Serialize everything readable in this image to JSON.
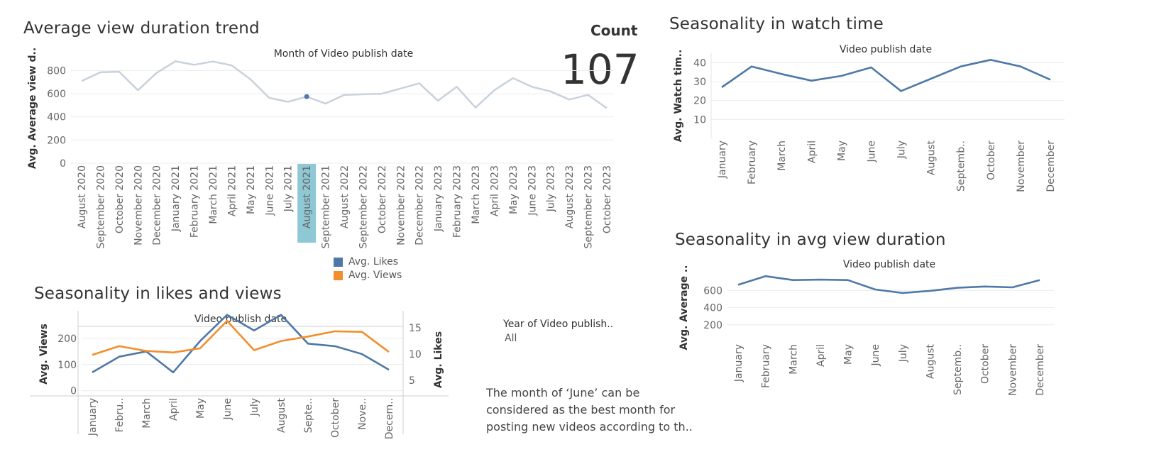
{
  "titles": {
    "trend": "Average view duration trend",
    "watch": "Seasonality in watch time",
    "likes_views": "Seasonality in  likes and views",
    "avgdur": "Seasonality in avg view duration"
  },
  "kpi": {
    "label": "Count",
    "value": "107"
  },
  "legend": [
    {
      "label": "Avg. Likes",
      "color": "#4e79a7"
    },
    {
      "label": "Avg. Views",
      "color": "#f28e2b"
    }
  ],
  "filter": {
    "label": "Year of Video publish..",
    "value": "All"
  },
  "note": "The month of ‘June’ can be considered as the best month for posting new videos according to th..",
  "chart_data": [
    {
      "id": "trend",
      "type": "line",
      "title": "Month of Video publish date",
      "ylabel": "Avg. Average view d..",
      "ylim": [
        0,
        950
      ],
      "yticks": [
        0,
        200,
        400,
        600,
        800
      ],
      "categories": [
        "August 2020",
        "September 2020",
        "October 2020",
        "November 2020",
        "December 2020",
        "January 2021",
        "February 2021",
        "March 2021",
        "April 2021",
        "May 2021",
        "June 2021",
        "July 2021",
        "August 2021",
        "September 2021",
        "August 2022",
        "September 2022",
        "October 2022",
        "November 2022",
        "December 2022",
        "January 2023",
        "February 2023",
        "March 2023",
        "April 2023",
        "May 2023",
        "June 2023",
        "July 2023",
        "August 2023",
        "September 2023",
        "October 2023"
      ],
      "series": [
        {
          "values": [
            710,
            785,
            790,
            630,
            780,
            880,
            850,
            878,
            845,
            725,
            565,
            530,
            575,
            515,
            590,
            595,
            600,
            645,
            690,
            540,
            660,
            480,
            630,
            735,
            660,
            620,
            550,
            590,
            475
          ]
        }
      ],
      "highlight": {
        "category": "August 2021",
        "color": "#8ec8d4",
        "series_color": "#c8d2dc",
        "point_color": "#4e79a7"
      }
    },
    {
      "id": "watch",
      "type": "line",
      "title": "Video publish date",
      "ylabel": "Avg. Watch tim..",
      "ylim": [
        0,
        45
      ],
      "yticks": [
        10,
        20,
        30,
        40
      ],
      "categories": [
        "January",
        "February",
        "March",
        "April",
        "May",
        "June",
        "July",
        "August",
        "Septemb..",
        "October",
        "November",
        "December"
      ],
      "series": [
        {
          "values": [
            27,
            38,
            34,
            30.5,
            33,
            37.5,
            25,
            31.5,
            38,
            41.5,
            38,
            31
          ],
          "color": "#4e79a7"
        }
      ]
    },
    {
      "id": "likes_views",
      "type": "line",
      "title": "Video publish date",
      "ylabel": "Avg. Views",
      "ylabel_right": "Avg. Likes",
      "ylim": [
        -20,
        300
      ],
      "yticks": [
        0,
        100,
        200
      ],
      "ylim_right": [
        2,
        18
      ],
      "yticks_right": [
        5,
        10,
        15
      ],
      "categories": [
        "January",
        "Febru..",
        "March",
        "April",
        "May",
        "June",
        "July",
        "August",
        "Septe..",
        "October",
        "Nove..",
        "Decem.."
      ],
      "series": [
        {
          "name": "Avg. Likes",
          "axis": "right",
          "color": "#4e79a7",
          "values": [
            6.5,
            9.5,
            10.5,
            6.5,
            12.5,
            17.5,
            14.5,
            17.5,
            12,
            11.5,
            10,
            7
          ]
        },
        {
          "name": "Avg. Views",
          "axis": "left",
          "color": "#f28e2b",
          "values": [
            137,
            170,
            152,
            146,
            162,
            267,
            155,
            190,
            207,
            227,
            225,
            148
          ]
        }
      ]
    },
    {
      "id": "avgdur",
      "type": "line",
      "title": "Video publish date",
      "ylabel": "Avg. Average ..",
      "ylim": [
        0,
        800
      ],
      "yticks": [
        200,
        400,
        600
      ],
      "categories": [
        "January",
        "February",
        "March",
        "April",
        "May",
        "June",
        "July",
        "August",
        "Septemb..",
        "October",
        "November",
        "December"
      ],
      "series": [
        {
          "values": [
            665,
            765,
            720,
            725,
            720,
            610,
            570,
            595,
            630,
            645,
            635,
            720
          ],
          "color": "#4e79a7"
        }
      ]
    }
  ]
}
